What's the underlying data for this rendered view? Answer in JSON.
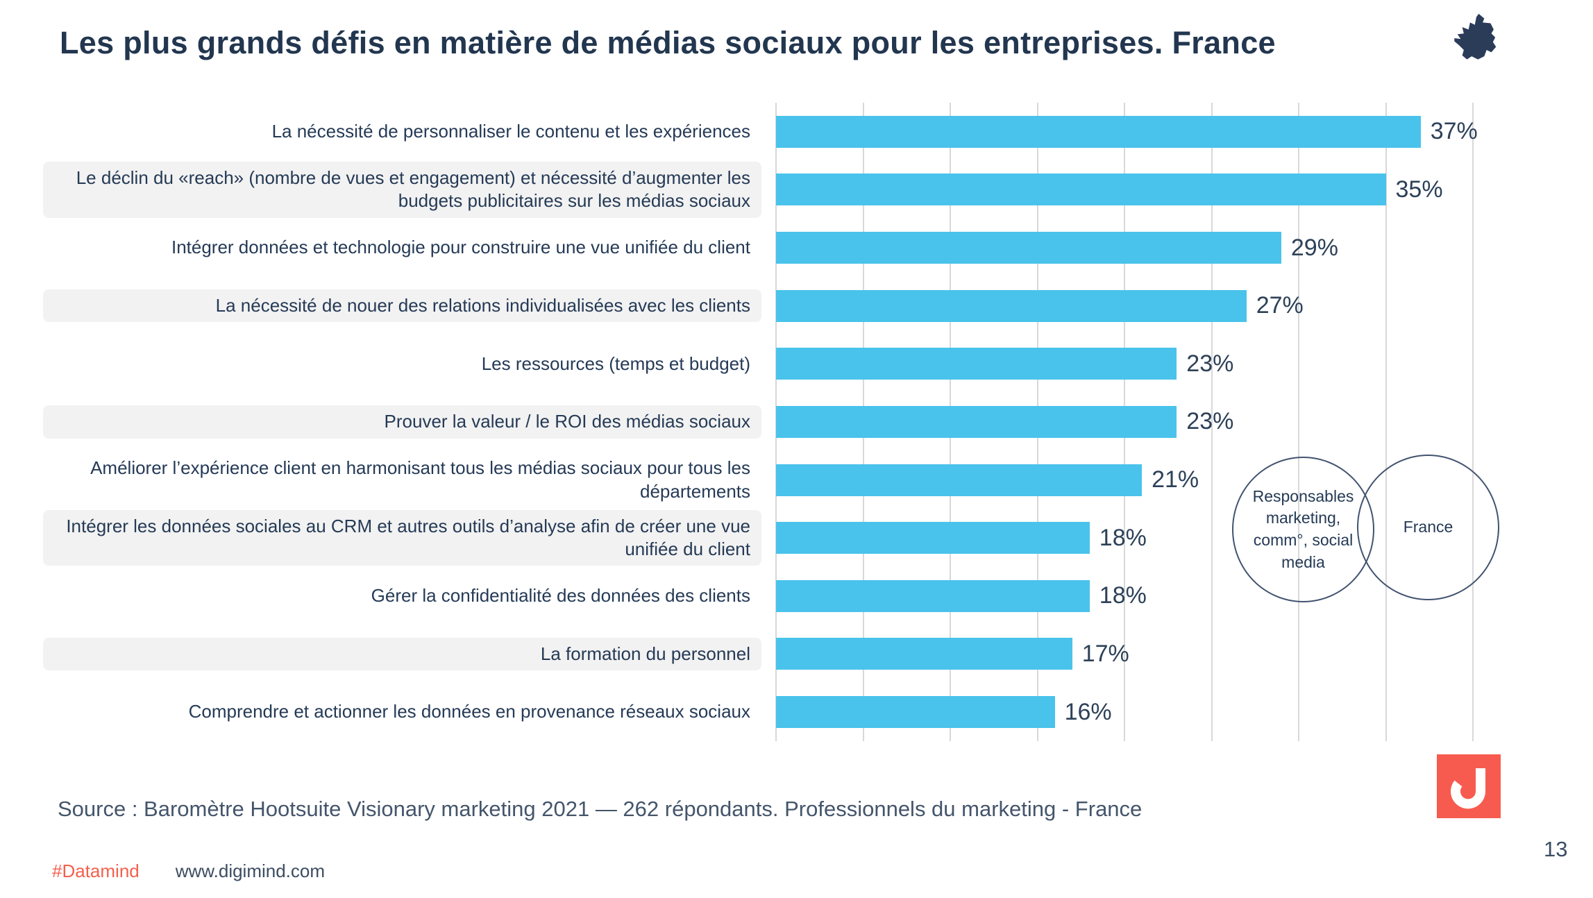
{
  "title": "Les plus grands défis en matière de médias sociaux pour les entreprises. France",
  "icons": {
    "header_icon": "france-map-icon",
    "logo_icon": "digimind-logo"
  },
  "colors": {
    "bar_blue": "#49c3eb",
    "navy_text": "#22364f",
    "accent_red": "#f4604c",
    "logo_red": "#f75b4f",
    "row_band_gray": "#f2f2f2",
    "gridline_gray": "#d8d8d8"
  },
  "chart_data": {
    "type": "bar",
    "orientation": "horizontal",
    "title": "Les plus grands défis en matière de médias sociaux pour les entreprises. France",
    "xlabel": "",
    "ylabel": "",
    "unit": "%",
    "grid": true,
    "legend": "none",
    "axis": {
      "min": 0,
      "max": 40,
      "step": 5
    },
    "categories": [
      "La nécessité de personnaliser le contenu et les expériences",
      "Le déclin du «reach» (nombre de vues et engagement) et nécessité d’augmenter les budgets publicitaires sur les médias sociaux",
      "Intégrer données et technologie pour construire une vue unifiée du client",
      "La nécessité de nouer des relations individualisées avec les clients",
      "Les ressources (temps et budget)",
      "Prouver la valeur / le ROI des médias sociaux",
      "Améliorer l’expérience client en harmonisant tous les médias sociaux pour tous les départements",
      "Intégrer les données sociales au CRM et autres outils d’analyse afin de créer une vue unifiée du client",
      "Gérer la confidentialité des données des clients",
      "La formation du personnel",
      "Comprendre et actionner les données en provenance réseaux sociaux"
    ],
    "values": [
      37,
      35,
      29,
      27,
      23,
      23,
      21,
      18,
      18,
      17,
      16
    ],
    "value_labels": [
      "37%",
      "35%",
      "29%",
      "27%",
      "23%",
      "23%",
      "21%",
      "18%",
      "18%",
      "17%",
      "16%"
    ],
    "shaded_rows": [
      1,
      3,
      5,
      7,
      9
    ]
  },
  "annotations": {
    "respondents_circle": "Responsables marketing, comm°, social media",
    "country_circle": "France"
  },
  "footer": {
    "source": "Source : Baromètre Hootsuite Visionary marketing 2021 — 262 répondants. Professionnels du marketing - France",
    "hashtag": "#Datamind",
    "website": "www.digimind.com",
    "page_number": "13"
  }
}
